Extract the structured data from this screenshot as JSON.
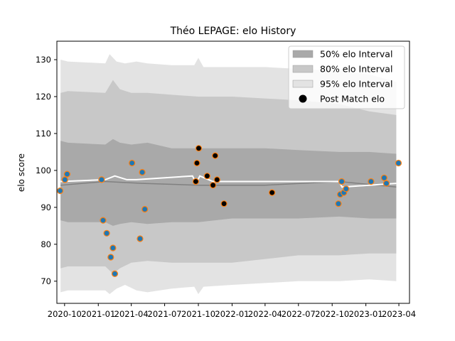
{
  "chart_data": {
    "type": "line",
    "title": "Théo LEPAGE: elo History",
    "xlabel": "",
    "ylabel": "elo score",
    "ylim": [
      64,
      135
    ],
    "xlim": [
      "2020-09-10",
      "2023-04-30"
    ],
    "yticks": [
      70,
      80,
      90,
      100,
      110,
      120,
      130
    ],
    "xticks": [
      "2020-10",
      "2021-01",
      "2021-04",
      "2021-07",
      "2021-10",
      "2022-01",
      "2022-04",
      "2022-07",
      "2022-10",
      "2023-01",
      "2023-04"
    ],
    "grid": false,
    "legend_position": "top-right",
    "legend": [
      "50% elo Interval",
      "80% elo Interval",
      "95% elo Interval",
      "Post Match elo"
    ],
    "colors": {
      "band50": "#a9a9a9",
      "band80": "#c8c8c8",
      "band95": "#e3e3e3",
      "median_line": "#808080",
      "mean_line": "#ffffff",
      "point_face": "#1f77b4",
      "point_edge": "#ff7f0e",
      "point_dark": "#000000"
    },
    "series": [
      {
        "name": "50% elo Interval",
        "x": [
          "2020-09-20",
          "2020-10-10",
          "2021-01-20",
          "2021-02-10",
          "2021-03-01",
          "2021-04-01",
          "2021-05-15",
          "2021-07-20",
          "2021-10-01",
          "2022-01-01",
          "2022-04-01",
          "2022-07-01",
          "2022-10-20",
          "2023-01-10",
          "2023-03-25"
        ],
        "upper": [
          108,
          107.5,
          107,
          108.5,
          107.5,
          107,
          107.5,
          106,
          106,
          106,
          106,
          105.5,
          105,
          105,
          104.5
        ],
        "lower": [
          86.5,
          86,
          86,
          85,
          85.5,
          86,
          85.5,
          86,
          86,
          87,
          87,
          87,
          87.5,
          87,
          87
        ]
      },
      {
        "name": "80% elo Interval",
        "x": [
          "2020-09-20",
          "2020-10-10",
          "2021-01-20",
          "2021-02-10",
          "2021-03-01",
          "2021-04-01",
          "2021-05-15",
          "2021-07-20",
          "2021-10-01",
          "2022-01-01",
          "2022-04-01",
          "2022-07-01",
          "2022-10-20",
          "2023-01-10",
          "2023-03-25"
        ],
        "upper": [
          121,
          121.5,
          121,
          124.5,
          122,
          121,
          121,
          120.5,
          120,
          120,
          119.5,
          119,
          118,
          116,
          115
        ],
        "lower": [
          73.5,
          74,
          74,
          72,
          73.5,
          75,
          75.5,
          75,
          75,
          75,
          76,
          77,
          77,
          77.5,
          77.5
        ]
      },
      {
        "name": "95% elo Interval",
        "x": [
          "2020-09-20",
          "2020-10-10",
          "2021-01-20",
          "2021-02-01",
          "2021-02-20",
          "2021-03-15",
          "2021-04-15",
          "2021-05-15",
          "2021-07-20",
          "2021-09-20",
          "2021-10-01",
          "2021-10-15",
          "2022-01-01",
          "2022-04-01",
          "2022-07-01",
          "2022-10-20",
          "2023-01-10",
          "2023-03-25"
        ],
        "upper": [
          130,
          129.5,
          129,
          131.5,
          129.5,
          129,
          129.5,
          129,
          128.5,
          128.5,
          130.5,
          128,
          128,
          128,
          127.5,
          127,
          126,
          124
        ],
        "lower": [
          67,
          67.5,
          67.5,
          66.5,
          68,
          69,
          67.5,
          67,
          68,
          68.5,
          66.5,
          68.5,
          69,
          69.5,
          70,
          70,
          70.5,
          70
        ]
      },
      {
        "name": "median",
        "x": [
          "2020-09-20",
          "2021-01-20",
          "2021-05-01",
          "2021-10-01",
          "2022-04-01",
          "2022-10-20",
          "2023-03-25"
        ],
        "values": [
          96,
          97,
          96.5,
          96,
          96,
          97,
          95.5
        ]
      },
      {
        "name": "mean",
        "x": [
          "2020-09-20",
          "2021-01-20",
          "2021-02-15",
          "2021-03-20",
          "2021-04-15",
          "2021-09-15",
          "2021-09-25",
          "2021-10-05",
          "2021-11-10",
          "2022-04-01",
          "2022-10-20",
          "2022-10-28",
          "2023-03-25"
        ],
        "values": [
          97,
          97.5,
          98.5,
          97.5,
          97.5,
          98.5,
          96.5,
          98.5,
          97,
          97,
          97,
          95.5,
          96.5
        ]
      }
    ],
    "points": [
      {
        "x": "2020-09-19",
        "y": 94.5
      },
      {
        "x": "2020-10-02",
        "y": 97.5
      },
      {
        "x": "2020-10-08",
        "y": 99
      },
      {
        "x": "2021-01-10",
        "y": 97.5
      },
      {
        "x": "2021-01-14",
        "y": 86.5
      },
      {
        "x": "2021-01-24",
        "y": 83
      },
      {
        "x": "2021-02-04",
        "y": 76.5
      },
      {
        "x": "2021-02-10",
        "y": 79
      },
      {
        "x": "2021-02-15",
        "y": 72
      },
      {
        "x": "2021-04-03",
        "y": 102
      },
      {
        "x": "2021-04-25",
        "y": 81.5
      },
      {
        "x": "2021-05-01",
        "y": 99.5
      },
      {
        "x": "2021-05-08",
        "y": 89.5
      },
      {
        "x": "2021-09-24",
        "y": 97,
        "dark": true
      },
      {
        "x": "2021-09-27",
        "y": 102,
        "dark": true
      },
      {
        "x": "2021-10-02",
        "y": 106,
        "dark": true
      },
      {
        "x": "2021-10-25",
        "y": 98.5,
        "dark": true
      },
      {
        "x": "2021-11-10",
        "y": 96,
        "dark": true
      },
      {
        "x": "2021-11-16",
        "y": 104,
        "dark": true
      },
      {
        "x": "2021-11-21",
        "y": 97.5,
        "dark": true
      },
      {
        "x": "2021-12-10",
        "y": 91,
        "dark": true
      },
      {
        "x": "2022-04-20",
        "y": 94,
        "dark": true
      },
      {
        "x": "2022-10-18",
        "y": 91
      },
      {
        "x": "2022-10-23",
        "y": 93.5
      },
      {
        "x": "2022-10-27",
        "y": 97
      },
      {
        "x": "2022-11-02",
        "y": 94
      },
      {
        "x": "2022-11-08",
        "y": 95
      },
      {
        "x": "2023-01-15",
        "y": 97
      },
      {
        "x": "2023-02-20",
        "y": 98
      },
      {
        "x": "2023-02-26",
        "y": 96.5
      },
      {
        "x": "2023-03-31",
        "y": 102
      }
    ]
  }
}
